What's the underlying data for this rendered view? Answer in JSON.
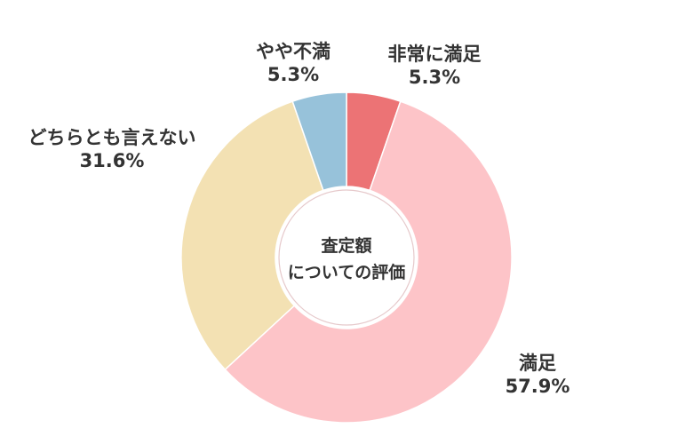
{
  "chart_data": {
    "type": "pie",
    "donut": true,
    "center_title": [
      "査定額",
      "についての評価"
    ],
    "slices": [
      {
        "label": "非常に満足",
        "value": 5.3,
        "value_label": "5.3%",
        "color": "#ec7375"
      },
      {
        "label": "満足",
        "value": 57.9,
        "value_label": "57.9%",
        "color": "#fdc4c8"
      },
      {
        "label": "どちらとも言えない",
        "value": 31.6,
        "value_label": "31.6%",
        "color": "#f3e1b3"
      },
      {
        "label": "やや不満",
        "value": 5.3,
        "value_label": "5.3%",
        "color": "#97c2da"
      }
    ],
    "start": "top",
    "direction": "clockwise",
    "legend": "none"
  }
}
